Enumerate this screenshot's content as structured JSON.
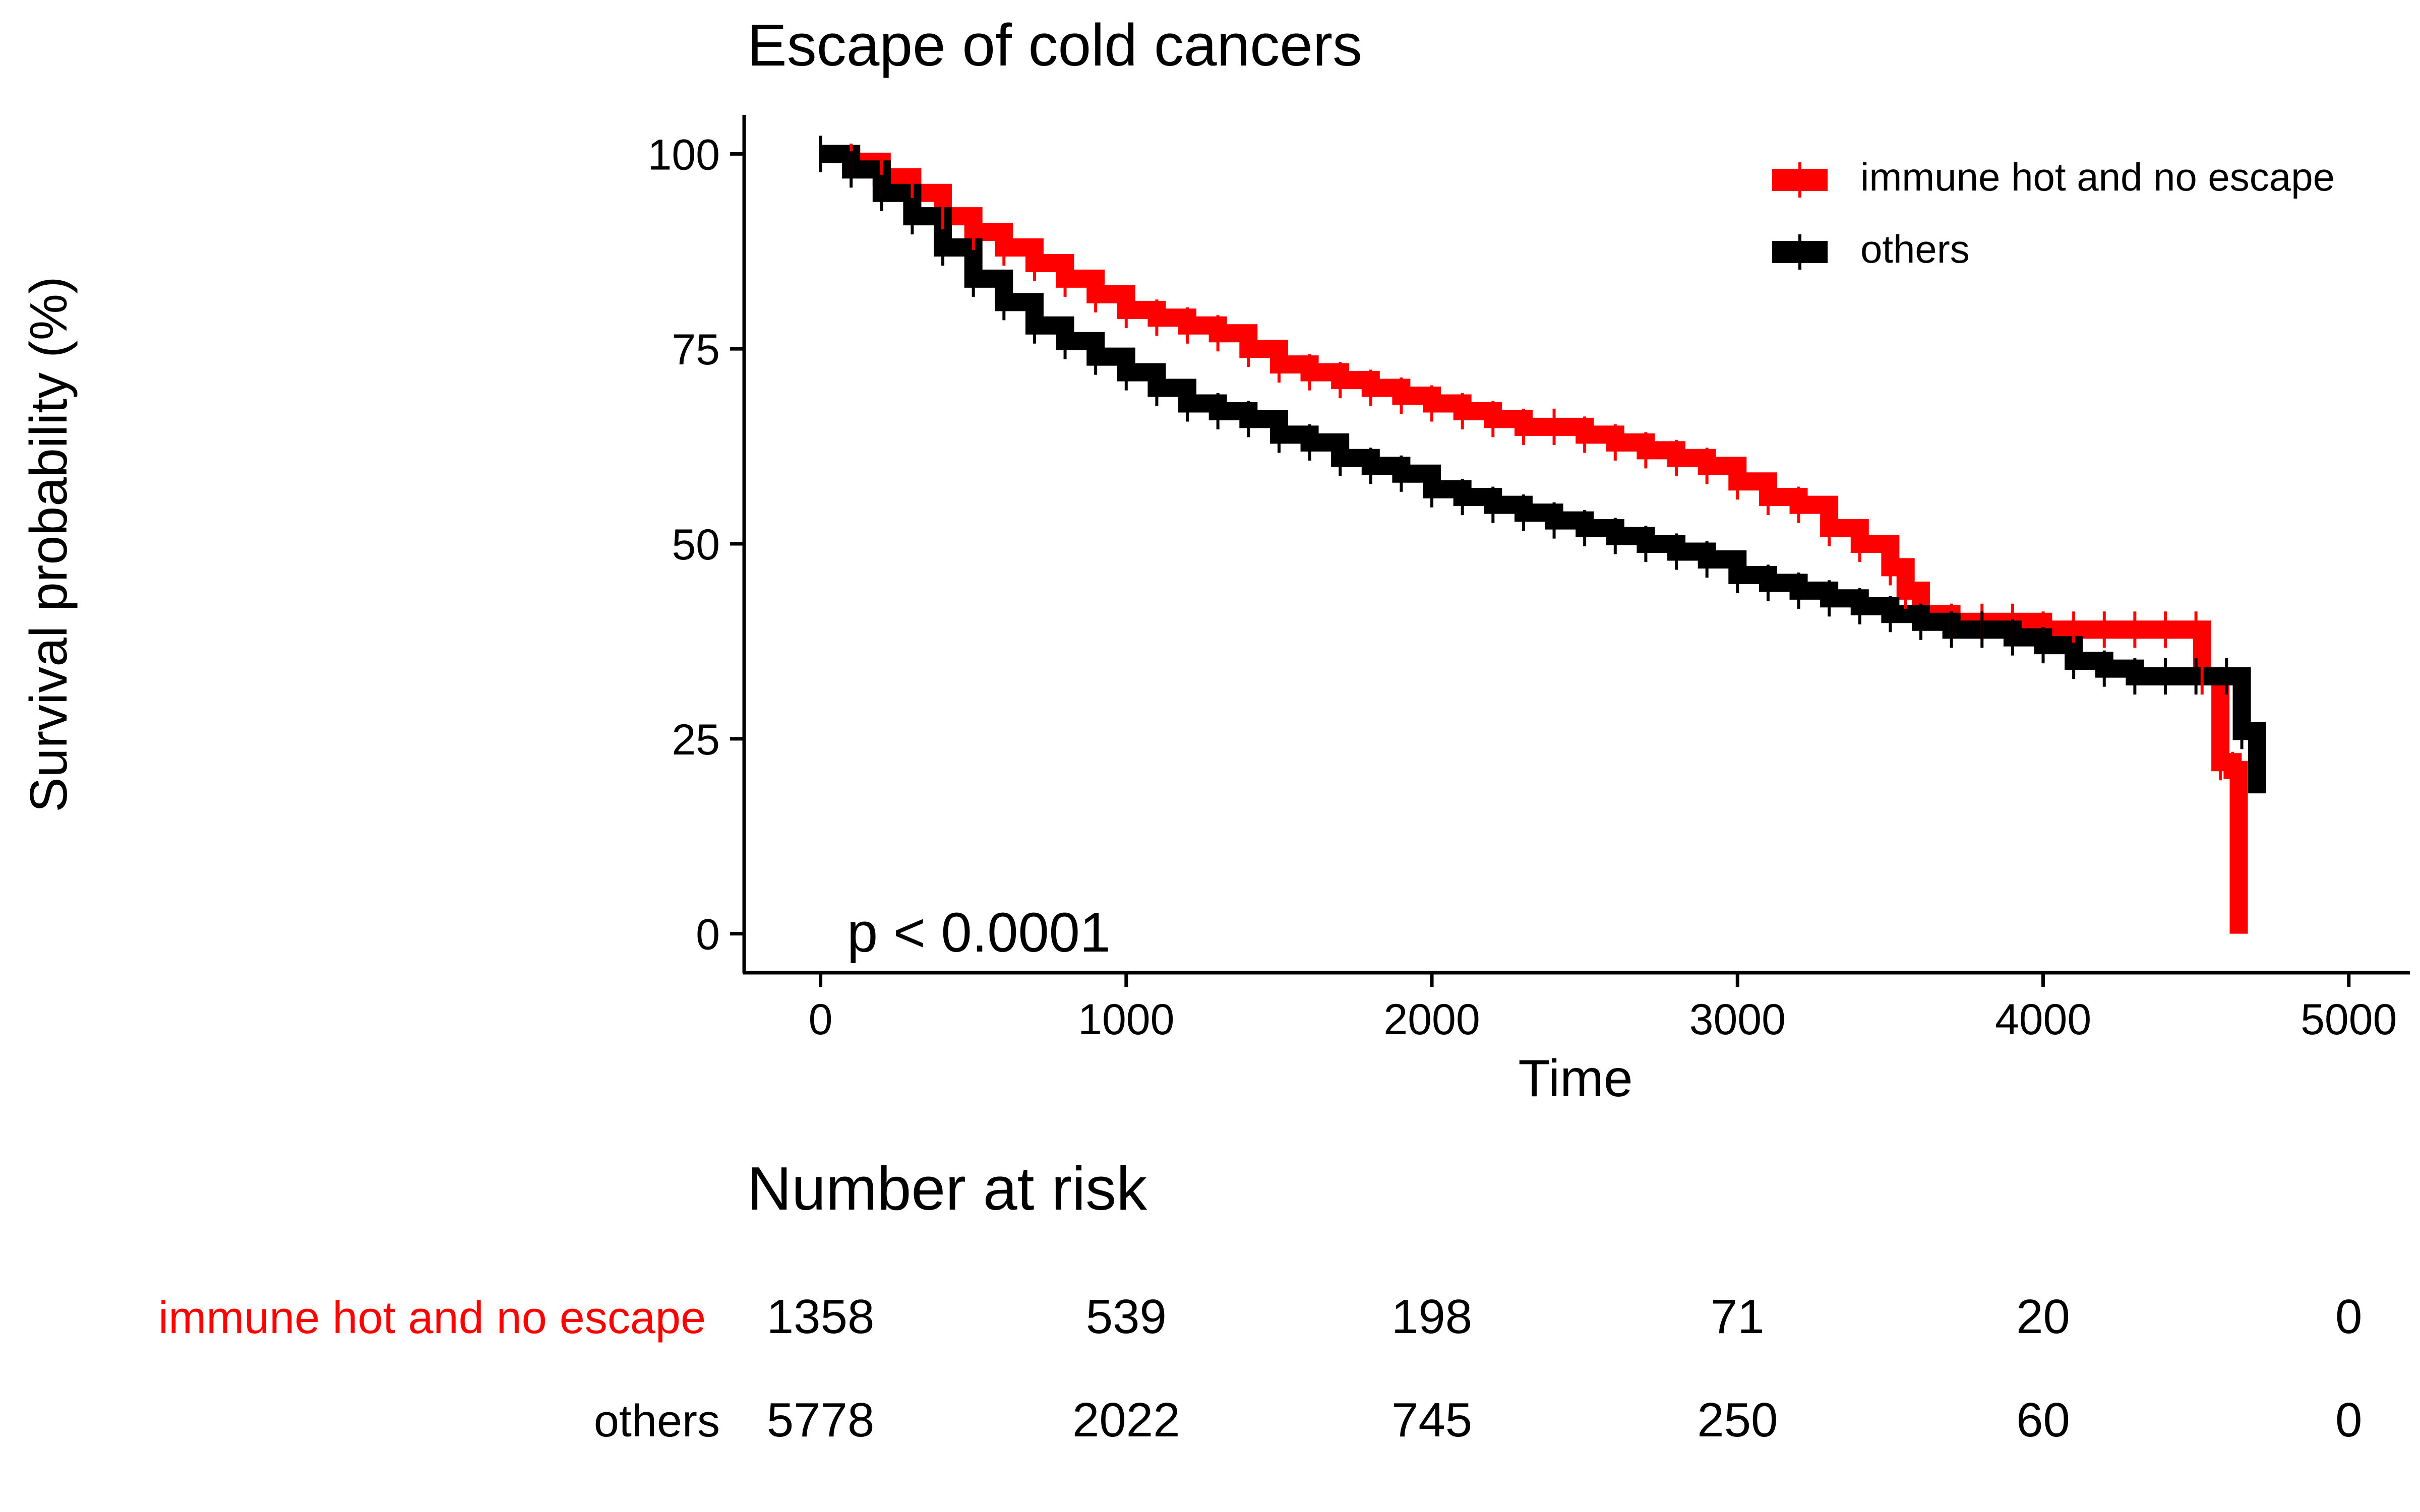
{
  "chart_data": {
    "type": "line",
    "subtype": "kaplan-meier",
    "title": "Escape of cold cancers",
    "xlabel": "Time",
    "ylabel": "Survival probability (%)",
    "xlim": [
      -250,
      5200
    ],
    "ylim": [
      -5,
      105
    ],
    "x_ticks": [
      0,
      1000,
      2000,
      3000,
      4000,
      5000
    ],
    "y_ticks": [
      0,
      25,
      50,
      75,
      100
    ],
    "legend_position": "top-right",
    "p_value_label": "p < 0.0001",
    "series": [
      {
        "name": "immune hot and no escape",
        "color": "#ff0000",
        "x": [
          0,
          100,
          200,
          300,
          400,
          500,
          600,
          700,
          800,
          900,
          1000,
          1100,
          1200,
          1300,
          1400,
          1500,
          1600,
          1700,
          1800,
          1900,
          2000,
          2100,
          2200,
          2300,
          2400,
          2500,
          2600,
          2700,
          2800,
          2900,
          3000,
          3100,
          3200,
          3300,
          3400,
          3500,
          3550,
          3600,
          3700,
          3800,
          3900,
          4000,
          4100,
          4200,
          4300,
          4400,
          4500,
          4520,
          4580,
          4620,
          4640
        ],
        "y": [
          100,
          99,
          97,
          95,
          92,
          90,
          88,
          86,
          84,
          82,
          80,
          79,
          78,
          77,
          75,
          73,
          72,
          71,
          70,
          69,
          68,
          67,
          66,
          65,
          65,
          64,
          63,
          62,
          61,
          60,
          58,
          56,
          55,
          52,
          50,
          47,
          44,
          41,
          40,
          40,
          40,
          39,
          39,
          39,
          39,
          39,
          39,
          33,
          22,
          21,
          0
        ]
      },
      {
        "name": "others",
        "color": "#000000",
        "x": [
          0,
          100,
          200,
          300,
          400,
          500,
          600,
          700,
          800,
          900,
          1000,
          1100,
          1200,
          1300,
          1400,
          1500,
          1600,
          1700,
          1800,
          1900,
          2000,
          2100,
          2200,
          2300,
          2400,
          2500,
          2600,
          2700,
          2800,
          2900,
          3000,
          3100,
          3200,
          3300,
          3400,
          3500,
          3600,
          3700,
          3800,
          3900,
          4000,
          4100,
          4200,
          4300,
          4400,
          4500,
          4600,
          4650,
          4700
        ],
        "y": [
          100,
          98,
          95,
          92,
          88,
          84,
          81,
          78,
          76,
          74,
          72,
          70,
          68,
          67,
          66,
          64,
          63,
          61,
          60,
          59,
          57,
          56,
          55,
          54,
          53,
          52,
          51,
          50,
          49,
          48,
          46,
          45,
          44,
          43,
          42,
          41,
          40,
          39,
          39,
          38,
          37,
          35,
          34,
          33,
          33,
          33,
          33,
          26,
          18
        ]
      }
    ],
    "risk_table": {
      "title": "Number at risk",
      "times": [
        0,
        1000,
        2000,
        3000,
        4000,
        5000
      ],
      "rows": [
        {
          "name": "immune hot and no escape",
          "color": "#ff0000",
          "values": [
            "1358",
            "539",
            "198",
            "71",
            "20",
            "0"
          ]
        },
        {
          "name": "others",
          "color": "#000000",
          "values": [
            "5778",
            "2022",
            "745",
            "250",
            "60",
            "0"
          ]
        }
      ]
    }
  }
}
